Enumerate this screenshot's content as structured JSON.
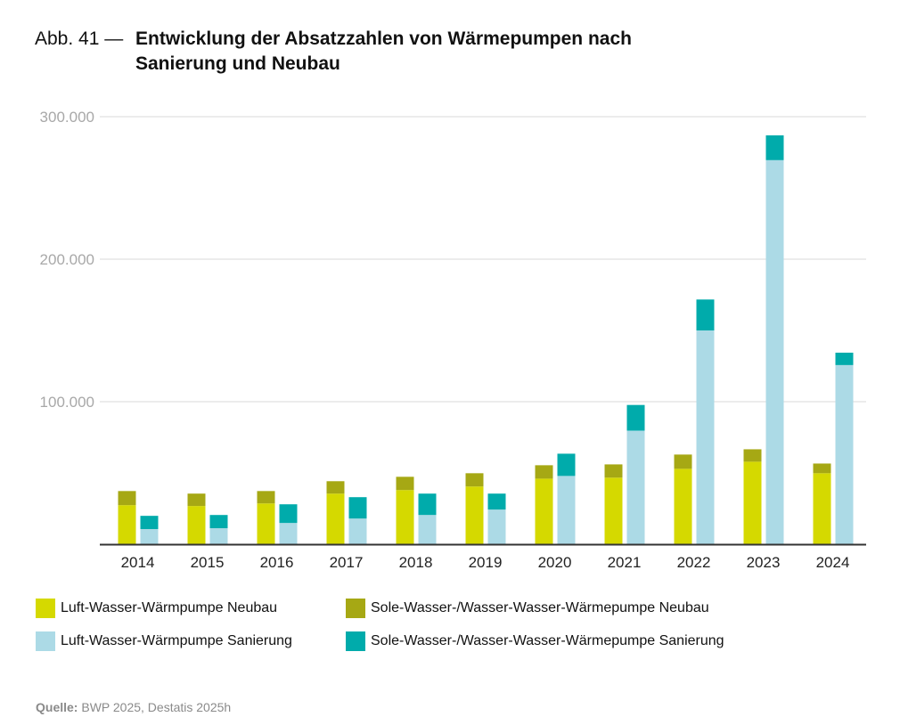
{
  "title": {
    "prefix": "Abb. 41 —",
    "text": "Entwicklung der Absatzzahlen von Wärmepumpen nach Sanierung und Neubau"
  },
  "source": {
    "label": "Quelle:",
    "text": "BWP 2025, Destatis 2025h"
  },
  "chart_data": {
    "type": "bar",
    "stacked": true,
    "grouped": true,
    "title": "Entwicklung der Absatzzahlen von Wärmepumpen nach Sanierung und Neubau",
    "xlabel": "",
    "ylabel": "",
    "ylim": [
      0,
      300000
    ],
    "yticks": [
      100000,
      200000,
      300000
    ],
    "ytick_labels": [
      "100.000",
      "200.000",
      "300.000"
    ],
    "grid": true,
    "legend_position": "bottom",
    "categories": [
      "2014",
      "2015",
      "2016",
      "2017",
      "2018",
      "2019",
      "2020",
      "2021",
      "2022",
      "2023",
      "2024"
    ],
    "series": [
      {
        "name": "Luft-Wasser-Wärmpumpe Neubau",
        "group": "Neubau",
        "color": "#d5d900",
        "values": [
          27400,
          26800,
          28600,
          35500,
          38000,
          40500,
          46000,
          46700,
          52900,
          57900,
          49800
        ]
      },
      {
        "name": "Sole-Wasser-/Wasser-Wasser-Wärmepumpe Neubau",
        "group": "Neubau",
        "color": "#a6a814",
        "values": [
          9900,
          8700,
          8700,
          8700,
          9300,
          9300,
          9400,
          9300,
          10000,
          8700,
          6800
        ]
      },
      {
        "name": "Luft-Wasser-Wärmpumpe Sanierung",
        "group": "Sanierung",
        "color": "#acdae6",
        "values": [
          10600,
          11200,
          14900,
          18000,
          20500,
          24300,
          47900,
          79700,
          150000,
          269500,
          125700
        ]
      },
      {
        "name": "Sole-Wasser-/Wasser-Wasser-Wärmepumpe Sanierung",
        "group": "Sanierung",
        "color": "#00abab",
        "values": [
          9300,
          9300,
          13100,
          15000,
          15000,
          11200,
          15600,
          18000,
          21700,
          17400,
          8700
        ]
      }
    ]
  }
}
